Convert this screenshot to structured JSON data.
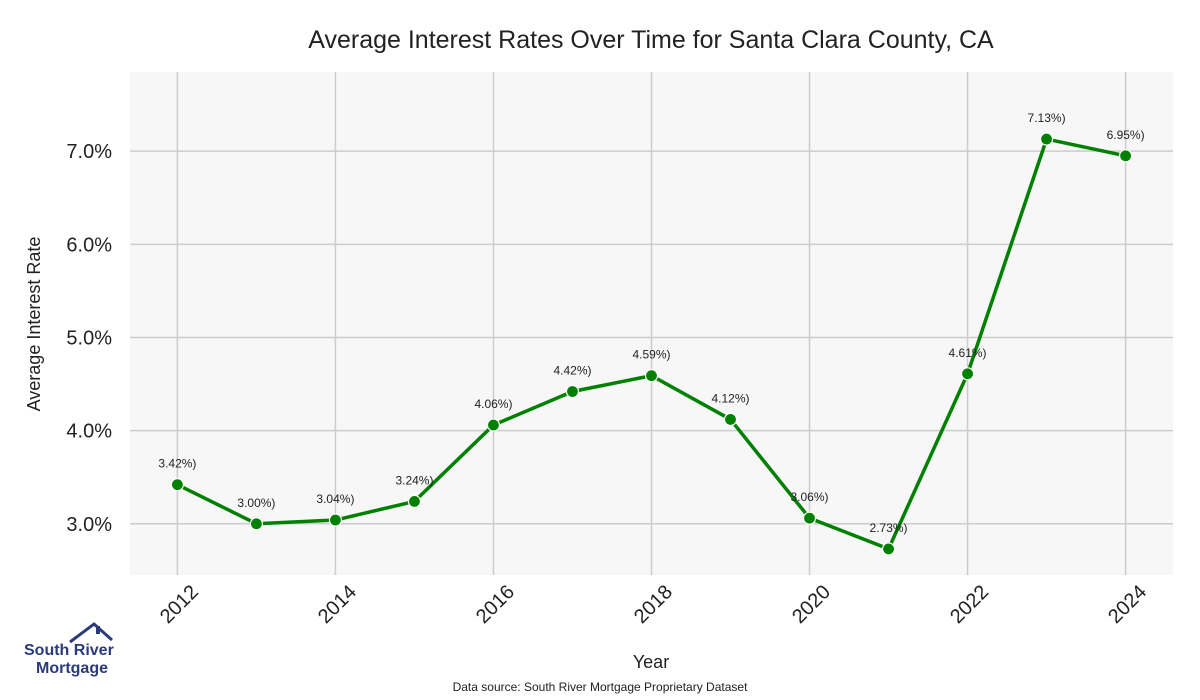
{
  "chart_data": {
    "type": "line",
    "title": "Average Interest Rates Over Time for Santa Clara County, CA",
    "xlabel": "Year",
    "ylabel": "Average Interest Rate",
    "x": [
      2012,
      2013,
      2014,
      2015,
      2016,
      2017,
      2018,
      2019,
      2020,
      2021,
      2022,
      2023,
      2024
    ],
    "series": [
      {
        "values": [
          3.42,
          3.0,
          3.04,
          3.24,
          4.06,
          4.42,
          4.59,
          4.12,
          3.06,
          2.73,
          4.61,
          7.13,
          6.95
        ]
      }
    ],
    "data_labels": [
      "3.42%)",
      "3.00%)",
      "3.04%)",
      "3.24%)",
      "4.06%)",
      "4.42%)",
      "4.59%)",
      "4.12%)",
      "3.06%)",
      "2.73%)",
      "4.61%)",
      "7.13%)",
      "6.95%)"
    ],
    "x_ticks": [
      "2012",
      "2014",
      "2016",
      "2018",
      "2020",
      "2022",
      "2024"
    ],
    "y_ticks": [
      "3.0%",
      "4.0%",
      "5.0%",
      "6.0%",
      "7.0%"
    ],
    "xlim": [
      2011.4,
      2024.6
    ],
    "ylim": [
      2.45,
      7.85
    ],
    "grid": true,
    "line_color": "#008000",
    "background_color": "#f7f7f7",
    "grid_color": "#cccccc"
  },
  "source_note": "Data source: South River Mortgage Proprietary Dataset",
  "logo": {
    "line1": "South River",
    "line2": "Mortgage",
    "color": "#2b3a7a",
    "icon": "house-roof-icon"
  }
}
